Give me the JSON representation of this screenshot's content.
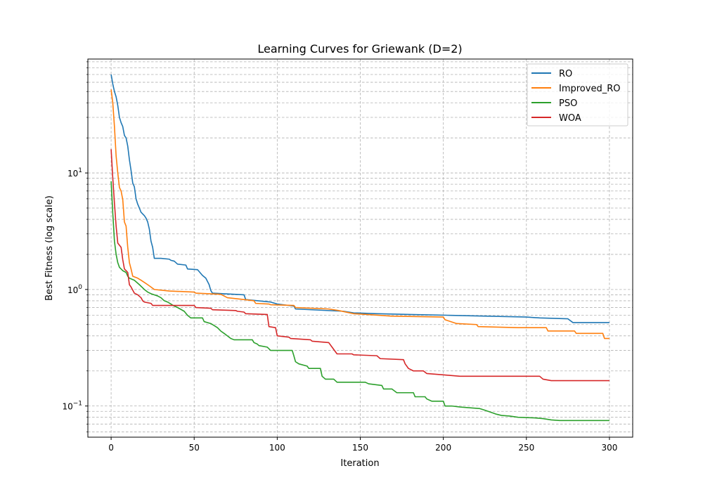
{
  "chart_data": {
    "type": "line",
    "title": "Learning Curves for Griewank (D=2)",
    "xlabel": "Iteration",
    "ylabel": "Best Fitness (log scale)",
    "xlim": [
      -14,
      314
    ],
    "ylim": [
      0.054,
      95
    ],
    "yscale": "log",
    "grid": true,
    "grid_minor": true,
    "legend_position": "top-right",
    "x_ticks": [
      0,
      50,
      100,
      150,
      200,
      250,
      300
    ],
    "y_ticks": [
      {
        "value": 0.1,
        "base": "10",
        "exp": "−1"
      },
      {
        "value": 1,
        "base": "10",
        "exp": "0"
      },
      {
        "value": 10,
        "base": "10",
        "exp": "1"
      }
    ],
    "series": [
      {
        "name": "RO",
        "color": "#1f77b4",
        "points": [
          [
            0,
            70
          ],
          [
            1,
            58
          ],
          [
            2,
            50
          ],
          [
            3,
            45
          ],
          [
            4,
            38
          ],
          [
            5,
            30
          ],
          [
            6,
            27
          ],
          [
            7,
            25
          ],
          [
            8,
            21
          ],
          [
            9,
            20
          ],
          [
            10,
            17
          ],
          [
            11,
            13
          ],
          [
            12,
            10.5
          ],
          [
            13,
            8.2
          ],
          [
            14,
            7.6
          ],
          [
            15,
            6.0
          ],
          [
            16,
            5.4
          ],
          [
            17,
            5.0
          ],
          [
            18,
            4.6
          ],
          [
            20,
            4.3
          ],
          [
            21,
            4.1
          ],
          [
            22,
            3.8
          ],
          [
            23,
            3.3
          ],
          [
            24,
            2.6
          ],
          [
            25,
            2.3
          ],
          [
            26,
            1.85
          ],
          [
            30,
            1.85
          ],
          [
            35,
            1.82
          ],
          [
            36,
            1.78
          ],
          [
            38,
            1.75
          ],
          [
            40,
            1.65
          ],
          [
            45,
            1.62
          ],
          [
            46,
            1.5
          ],
          [
            52,
            1.48
          ],
          [
            55,
            1.32
          ],
          [
            57,
            1.25
          ],
          [
            59,
            1.1
          ],
          [
            60,
            0.98
          ],
          [
            61,
            0.93
          ],
          [
            80,
            0.9
          ],
          [
            81,
            0.82
          ],
          [
            96,
            0.78
          ],
          [
            100,
            0.75
          ],
          [
            110,
            0.72
          ],
          [
            111,
            0.68
          ],
          [
            140,
            0.65
          ],
          [
            146,
            0.63
          ],
          [
            160,
            0.62
          ],
          [
            180,
            0.61
          ],
          [
            205,
            0.6
          ],
          [
            250,
            0.58
          ],
          [
            258,
            0.57
          ],
          [
            275,
            0.56
          ],
          [
            278,
            0.52
          ],
          [
            300,
            0.52
          ]
        ]
      },
      {
        "name": "Improved_RO",
        "color": "#ff7f0e",
        "points": [
          [
            0,
            52
          ],
          [
            1,
            40
          ],
          [
            2,
            25
          ],
          [
            3,
            14
          ],
          [
            4,
            10
          ],
          [
            5,
            7.5
          ],
          [
            6,
            7.0
          ],
          [
            7,
            5.9
          ],
          [
            8,
            3.8
          ],
          [
            9,
            3.5
          ],
          [
            10,
            2.3
          ],
          [
            11,
            1.7
          ],
          [
            12,
            1.5
          ],
          [
            13,
            1.3
          ],
          [
            16,
            1.25
          ],
          [
            18,
            1.2
          ],
          [
            20,
            1.15
          ],
          [
            22,
            1.1
          ],
          [
            24,
            1.05
          ],
          [
            26,
            1.0
          ],
          [
            35,
            0.97
          ],
          [
            50,
            0.95
          ],
          [
            51,
            0.93
          ],
          [
            66,
            0.91
          ],
          [
            70,
            0.85
          ],
          [
            80,
            0.82
          ],
          [
            86,
            0.8
          ],
          [
            87,
            0.76
          ],
          [
            95,
            0.75
          ],
          [
            96,
            0.74
          ],
          [
            110,
            0.73
          ],
          [
            111,
            0.7
          ],
          [
            131,
            0.68
          ],
          [
            137,
            0.66
          ],
          [
            146,
            0.62
          ],
          [
            162,
            0.6
          ],
          [
            169,
            0.59
          ],
          [
            200,
            0.58
          ],
          [
            201,
            0.55
          ],
          [
            208,
            0.51
          ],
          [
            220,
            0.5
          ],
          [
            221,
            0.48
          ],
          [
            245,
            0.47
          ],
          [
            262,
            0.47
          ],
          [
            263,
            0.44
          ],
          [
            279,
            0.44
          ],
          [
            280,
            0.42
          ],
          [
            296,
            0.42
          ],
          [
            297,
            0.38
          ],
          [
            300,
            0.38
          ]
        ]
      },
      {
        "name": "PSO",
        "color": "#2ca02c",
        "points": [
          [
            0,
            8.5
          ],
          [
            1,
            4.5
          ],
          [
            2,
            2.6
          ],
          [
            3,
            2.0
          ],
          [
            4,
            1.7
          ],
          [
            5,
            1.55
          ],
          [
            6,
            1.5
          ],
          [
            7,
            1.45
          ],
          [
            9,
            1.4
          ],
          [
            10,
            1.3
          ],
          [
            11,
            1.25
          ],
          [
            14,
            1.2
          ],
          [
            17,
            1.1
          ],
          [
            20,
            1.0
          ],
          [
            22,
            0.95
          ],
          [
            24,
            0.92
          ],
          [
            26,
            0.9
          ],
          [
            28,
            0.88
          ],
          [
            30,
            0.85
          ],
          [
            32,
            0.8
          ],
          [
            34,
            0.78
          ],
          [
            36,
            0.75
          ],
          [
            38,
            0.72
          ],
          [
            40,
            0.7
          ],
          [
            44,
            0.65
          ],
          [
            46,
            0.6
          ],
          [
            48,
            0.57
          ],
          [
            55,
            0.57
          ],
          [
            56,
            0.53
          ],
          [
            60,
            0.51
          ],
          [
            62,
            0.49
          ],
          [
            64,
            0.47
          ],
          [
            66,
            0.44
          ],
          [
            68,
            0.42
          ],
          [
            70,
            0.4
          ],
          [
            72,
            0.38
          ],
          [
            74,
            0.37
          ],
          [
            85,
            0.37
          ],
          [
            86,
            0.35
          ],
          [
            88,
            0.34
          ],
          [
            89,
            0.33
          ],
          [
            94,
            0.32
          ],
          [
            95,
            0.31
          ],
          [
            96,
            0.3
          ],
          [
            109,
            0.3
          ],
          [
            110,
            0.27
          ],
          [
            111,
            0.24
          ],
          [
            113,
            0.23
          ],
          [
            118,
            0.22
          ],
          [
            119,
            0.21
          ],
          [
            126,
            0.21
          ],
          [
            127,
            0.18
          ],
          [
            129,
            0.17
          ],
          [
            134,
            0.17
          ],
          [
            136,
            0.16
          ],
          [
            150,
            0.16
          ],
          [
            153,
            0.16
          ],
          [
            155,
            0.155
          ],
          [
            163,
            0.15
          ],
          [
            164,
            0.14
          ],
          [
            169,
            0.14
          ],
          [
            172,
            0.13
          ],
          [
            182,
            0.13
          ],
          [
            183,
            0.12
          ],
          [
            189,
            0.12
          ],
          [
            190,
            0.115
          ],
          [
            193,
            0.11
          ],
          [
            200,
            0.11
          ],
          [
            201,
            0.1
          ],
          [
            205,
            0.1
          ],
          [
            210,
            0.098
          ],
          [
            222,
            0.095
          ],
          [
            225,
            0.092
          ],
          [
            229,
            0.088
          ],
          [
            232,
            0.085
          ],
          [
            235,
            0.083
          ],
          [
            240,
            0.082
          ],
          [
            245,
            0.08
          ],
          [
            255,
            0.079
          ],
          [
            260,
            0.078
          ],
          [
            265,
            0.076
          ],
          [
            270,
            0.075
          ],
          [
            280,
            0.075
          ],
          [
            300,
            0.075
          ]
        ]
      },
      {
        "name": "WOA",
        "color": "#d62728",
        "points": [
          [
            0,
            16
          ],
          [
            1,
            9
          ],
          [
            2,
            5.5
          ],
          [
            3,
            3.5
          ],
          [
            4,
            2.5
          ],
          [
            6,
            2.3
          ],
          [
            7,
            1.8
          ],
          [
            8,
            1.5
          ],
          [
            9,
            1.45
          ],
          [
            10,
            1.4
          ],
          [
            11,
            1.1
          ],
          [
            12,
            1.05
          ],
          [
            14,
            0.93
          ],
          [
            16,
            0.9
          ],
          [
            18,
            0.85
          ],
          [
            19,
            0.8
          ],
          [
            20,
            0.78
          ],
          [
            24,
            0.76
          ],
          [
            25,
            0.73
          ],
          [
            50,
            0.73
          ],
          [
            51,
            0.7
          ],
          [
            60,
            0.69
          ],
          [
            61,
            0.67
          ],
          [
            75,
            0.66
          ],
          [
            76,
            0.65
          ],
          [
            80,
            0.64
          ],
          [
            81,
            0.62
          ],
          [
            94,
            0.61
          ],
          [
            95,
            0.48
          ],
          [
            99,
            0.47
          ],
          [
            100,
            0.4
          ],
          [
            107,
            0.39
          ],
          [
            108,
            0.38
          ],
          [
            120,
            0.37
          ],
          [
            121,
            0.36
          ],
          [
            131,
            0.35
          ],
          [
            133,
            0.32
          ],
          [
            136,
            0.28
          ],
          [
            145,
            0.28
          ],
          [
            146,
            0.275
          ],
          [
            160,
            0.27
          ],
          [
            162,
            0.255
          ],
          [
            176,
            0.25
          ],
          [
            177,
            0.23
          ],
          [
            179,
            0.21
          ],
          [
            182,
            0.2
          ],
          [
            188,
            0.2
          ],
          [
            190,
            0.19
          ],
          [
            200,
            0.185
          ],
          [
            210,
            0.18
          ],
          [
            258,
            0.18
          ],
          [
            260,
            0.17
          ],
          [
            265,
            0.165
          ],
          [
            300,
            0.165
          ]
        ]
      }
    ]
  }
}
